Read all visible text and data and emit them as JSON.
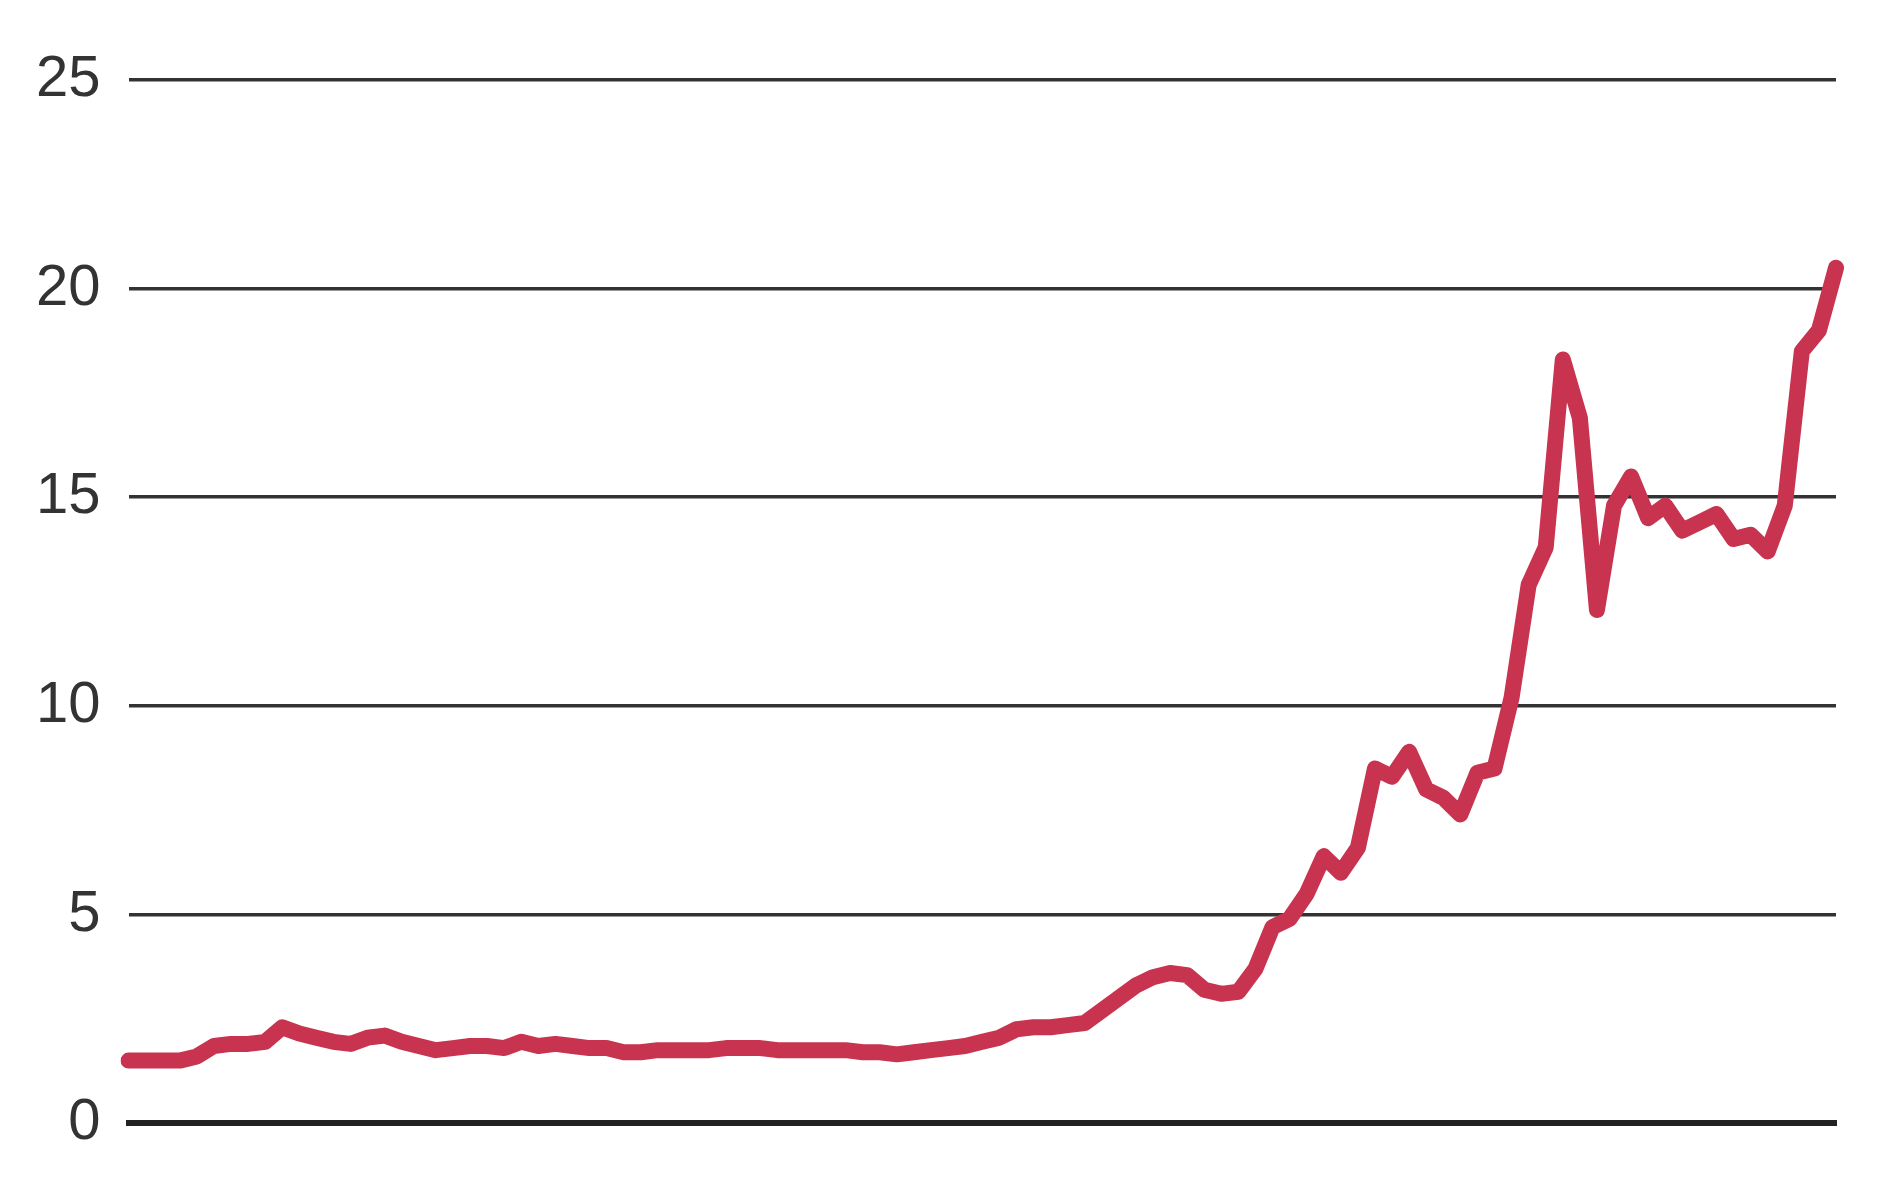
{
  "chart_data": {
    "type": "line",
    "categories": [
      null,
      null,
      null,
      null,
      null,
      null,
      null,
      null,
      null,
      null,
      null,
      null,
      null,
      null,
      null,
      null,
      null,
      null,
      null,
      null,
      null,
      null,
      null,
      null,
      null,
      null,
      null,
      null,
      null,
      null,
      null,
      null,
      null,
      null,
      null,
      null,
      null,
      null,
      null,
      null,
      null,
      null,
      null,
      null,
      null,
      null,
      null,
      null,
      null,
      null,
      null,
      null,
      null,
      null,
      null,
      null,
      null,
      null,
      null,
      null,
      null,
      null,
      null,
      null,
      null,
      null,
      null,
      null,
      null,
      null,
      null,
      null,
      null,
      null,
      null,
      null,
      null,
      null,
      null,
      null,
      null,
      null,
      null,
      null,
      null,
      null,
      null,
      null,
      null,
      null,
      null,
      null,
      null,
      null,
      null,
      null,
      null,
      null,
      null,
      null,
      null
    ],
    "series": [
      {
        "color": "#c8334f",
        "values": [
          1.5,
          1.5,
          1.5,
          1.5,
          1.6,
          1.85,
          1.9,
          1.9,
          1.95,
          2.3,
          2.15,
          2.05,
          1.95,
          1.9,
          2.05,
          2.1,
          1.95,
          1.85,
          1.75,
          1.8,
          1.85,
          1.85,
          1.8,
          1.95,
          1.85,
          1.9,
          1.85,
          1.8,
          1.8,
          1.7,
          1.7,
          1.75,
          1.75,
          1.75,
          1.75,
          1.8,
          1.8,
          1.8,
          1.75,
          1.75,
          1.75,
          1.75,
          1.75,
          1.7,
          1.7,
          1.65,
          1.7,
          1.75,
          1.8,
          1.85,
          1.95,
          2.05,
          2.25,
          2.3,
          2.3,
          2.35,
          2.4,
          2.7,
          3.0,
          3.3,
          3.5,
          3.6,
          3.55,
          3.2,
          3.1,
          3.15,
          3.7,
          4.7,
          4.9,
          5.5,
          6.4,
          6.0,
          6.6,
          8.5,
          8.3,
          8.9,
          8.0,
          7.8,
          7.4,
          8.4,
          8.5,
          10.2,
          12.9,
          13.8,
          18.3,
          16.9,
          12.3,
          14.8,
          15.5,
          14.5,
          14.8,
          14.2,
          14.4,
          14.6,
          14.0,
          14.1,
          13.7,
          14.8,
          18.5,
          19.0,
          20.5
        ]
      }
    ],
    "ylim": [
      0,
      25
    ],
    "yticks": [
      0,
      5,
      10,
      15,
      20,
      25
    ],
    "grid": "y",
    "tick_labels": "y",
    "legend": false,
    "marker": "none",
    "line_style": "solid"
  }
}
